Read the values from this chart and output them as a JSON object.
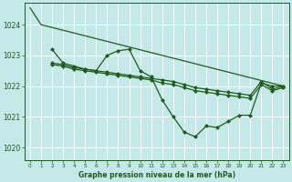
{
  "title": "Graphe pression niveau de la mer (hPa)",
  "background_color": "#c5e8e8",
  "grid_color": "#b0d8d8",
  "line_color": "#1e5c1e",
  "xlim": [
    -0.5,
    23.5
  ],
  "ylim": [
    1019.6,
    1024.7
  ],
  "yticks": [
    1020,
    1021,
    1022,
    1023,
    1024
  ],
  "xticks": [
    0,
    1,
    2,
    3,
    4,
    5,
    6,
    7,
    8,
    9,
    10,
    11,
    12,
    13,
    14,
    15,
    16,
    17,
    18,
    19,
    20,
    21,
    22,
    23
  ],
  "lines": [
    {
      "x": [
        0,
        1,
        23
      ],
      "y": [
        1024.55,
        1024.0,
        1022.0
      ],
      "has_markers": false
    },
    {
      "x": [
        2,
        3,
        4,
        5,
        6,
        7,
        8,
        9,
        10,
        11,
        12,
        13,
        14,
        15,
        16,
        17,
        18,
        19,
        20,
        21,
        22,
        23
      ],
      "y": [
        1023.2,
        1022.75,
        1022.65,
        1022.55,
        1022.5,
        1023.0,
        1023.15,
        1023.2,
        1022.5,
        1022.3,
        1021.55,
        1021.0,
        1020.5,
        1020.35,
        1020.7,
        1020.65,
        1020.85,
        1021.05,
        1021.05,
        1022.1,
        1022.0,
        1022.0
      ],
      "has_markers": true
    },
    {
      "x": [
        2,
        3,
        4,
        5,
        6,
        7,
        8,
        9,
        10,
        11,
        12,
        13,
        14,
        15,
        16,
        17,
        18,
        19,
        20,
        21,
        22,
        23
      ],
      "y": [
        1022.75,
        1022.7,
        1022.6,
        1022.55,
        1022.5,
        1022.45,
        1022.4,
        1022.35,
        1022.3,
        1022.25,
        1022.2,
        1022.15,
        1022.05,
        1021.95,
        1021.9,
        1021.85,
        1021.8,
        1021.75,
        1021.7,
        1022.15,
        1021.9,
        1022.0
      ],
      "has_markers": true
    },
    {
      "x": [
        2,
        3,
        4,
        5,
        6,
        7,
        8,
        9,
        10,
        11,
        12,
        13,
        14,
        15,
        16,
        17,
        18,
        19,
        20,
        21,
        22,
        23
      ],
      "y": [
        1022.7,
        1022.65,
        1022.55,
        1022.5,
        1022.45,
        1022.4,
        1022.35,
        1022.3,
        1022.25,
        1022.2,
        1022.1,
        1022.05,
        1021.95,
        1021.85,
        1021.8,
        1021.75,
        1021.7,
        1021.65,
        1021.6,
        1022.05,
        1021.85,
        1021.95
      ],
      "has_markers": true
    }
  ]
}
